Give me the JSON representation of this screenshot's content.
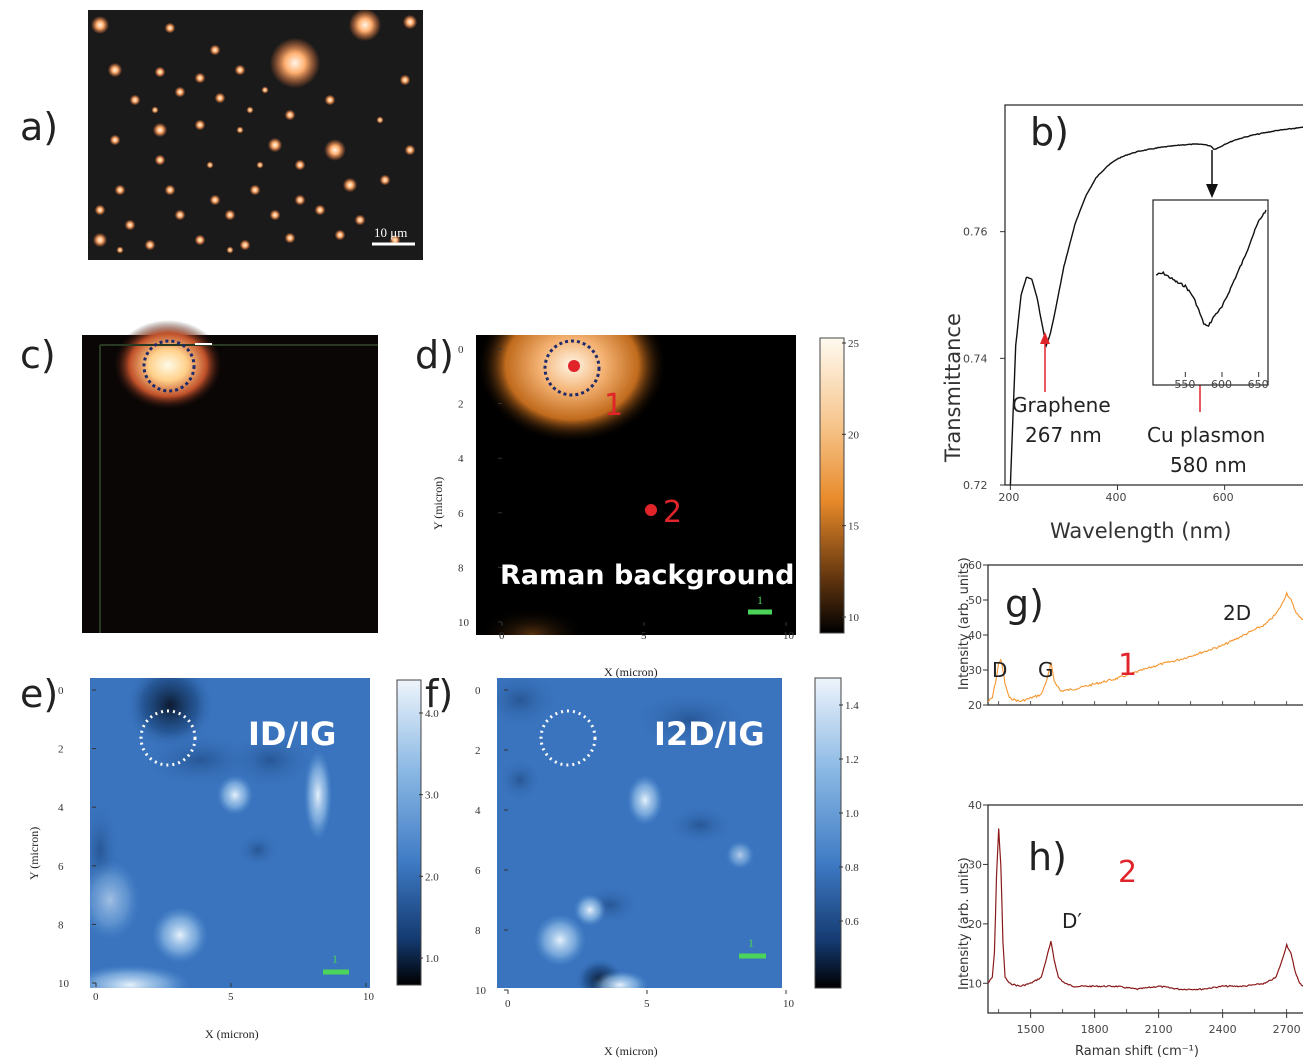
{
  "panels": {
    "a": {
      "label": "a)",
      "scale_bar": "10 μm"
    },
    "b": {
      "label": "b)"
    },
    "c": {
      "label": "c)"
    },
    "d": {
      "label": "d)",
      "annotation": "Raman background",
      "point1": "1",
      "point2": "2",
      "scale": "1",
      "xlabel": "X (micron)",
      "ylabel": "Y (micron)",
      "xticks": [
        "0",
        "5",
        "10"
      ],
      "yticks": [
        "0",
        "2",
        "4",
        "6",
        "8",
        "10"
      ],
      "colorbar_ticks": [
        "25",
        "20",
        "15",
        "10"
      ]
    },
    "e": {
      "label": "e)",
      "annotation": "ID/IG",
      "scale": "1",
      "xlabel": "X (micron)",
      "ylabel": "Y (micron)",
      "xticks": [
        "0",
        "5",
        "10"
      ],
      "yticks": [
        "0",
        "2",
        "4",
        "6",
        "8",
        "10"
      ],
      "colorbar_ticks": [
        "4.0",
        "3.0",
        "2.0",
        "1.0"
      ]
    },
    "f": {
      "label": "f)",
      "annotation": "I2D/IG",
      "scale": "1",
      "xlabel": "X (micron)",
      "xticks": [
        "0",
        "5",
        "10"
      ],
      "yticks": [
        "0",
        "2",
        "4",
        "6",
        "8",
        "10"
      ],
      "colorbar_ticks": [
        "1.4",
        "1.2",
        "1.0",
        "0.8",
        "0.6"
      ]
    },
    "g": {
      "label": "g)",
      "peak_D": "D",
      "peak_G": "G",
      "peak_2D": "2D",
      "point": "1"
    },
    "h": {
      "label": "h)",
      "peak_Dp": "D′",
      "point": "2"
    }
  },
  "chart_data": [
    {
      "panel": "b",
      "type": "line",
      "xlabel": "Wavelength (nm)",
      "ylabel": "Transmittance",
      "xlim": [
        190,
        750
      ],
      "ylim": [
        0.72,
        0.78
      ],
      "xticks": [
        "200",
        "400",
        "600"
      ],
      "yticks": [
        "0.72",
        "0.74",
        "0.76"
      ],
      "x": [
        200,
        210,
        220,
        230,
        240,
        250,
        260,
        267,
        275,
        285,
        300,
        320,
        340,
        360,
        380,
        400,
        420,
        440,
        460,
        480,
        500,
        520,
        540,
        560,
        575,
        580,
        590,
        600,
        620,
        650,
        680,
        700,
        720,
        740,
        750
      ],
      "y": [
        0.72,
        0.742,
        0.75,
        0.7528,
        0.7525,
        0.7495,
        0.745,
        0.742,
        0.744,
        0.748,
        0.7545,
        0.761,
        0.7655,
        0.7685,
        0.7703,
        0.7715,
        0.7722,
        0.7727,
        0.773,
        0.7733,
        0.7735,
        0.7737,
        0.7738,
        0.7738,
        0.7735,
        0.773,
        0.7733,
        0.7738,
        0.7745,
        0.7752,
        0.7757,
        0.776,
        0.7762,
        0.7764,
        0.7765
      ],
      "annotations": [
        {
          "text_line1": "Graphene",
          "text_line2": "267 nm",
          "x": 267
        },
        {
          "text_line1": "Cu plasmon",
          "text_line2": "580 nm",
          "x": 580
        }
      ],
      "inset": {
        "xticks": [
          "550",
          "600",
          "650"
        ],
        "xlim": [
          510,
          660
        ],
        "x": [
          510,
          520,
          530,
          540,
          550,
          555,
          560,
          565,
          570,
          575,
          580,
          585,
          590,
          600,
          610,
          620,
          630,
          640,
          650,
          660
        ],
        "y": [
          0.6,
          0.61,
          0.58,
          0.55,
          0.53,
          0.5,
          0.47,
          0.42,
          0.36,
          0.3,
          0.28,
          0.31,
          0.35,
          0.4,
          0.5,
          0.6,
          0.7,
          0.82,
          0.93,
          1.0
        ]
      }
    },
    {
      "panel": "g",
      "type": "line",
      "ylabel": "Intensity (arb. units)",
      "xlim": [
        1300,
        2800
      ],
      "ylim": [
        20,
        60
      ],
      "yticks": [
        "20",
        "30",
        "40",
        "50",
        "60"
      ],
      "x": [
        1300,
        1320,
        1340,
        1350,
        1360,
        1370,
        1380,
        1400,
        1450,
        1500,
        1550,
        1580,
        1595,
        1610,
        1640,
        1700,
        1800,
        1900,
        2000,
        2100,
        2200,
        2300,
        2400,
        2500,
        2550,
        2600,
        2650,
        2680,
        2700,
        2720,
        2740,
        2760,
        2800
      ],
      "y": [
        21,
        22,
        28,
        32,
        33,
        30,
        26,
        22,
        21,
        22,
        23,
        28,
        32,
        27,
        24,
        24.5,
        26,
        27.5,
        29.5,
        31.5,
        33,
        35,
        37,
        40,
        41.5,
        43,
        46,
        49,
        52,
        50,
        47,
        45,
        44
      ],
      "color": "#f5962e"
    },
    {
      "panel": "h",
      "type": "line",
      "xlabel": "Raman shift (cm⁻¹)",
      "ylabel": "Intensity (arb. units)",
      "xlim": [
        1300,
        2800
      ],
      "ylim": [
        5,
        40
      ],
      "xticks": [
        "1500",
        "1800",
        "2100",
        "2400",
        "2700"
      ],
      "yticks": [
        "10",
        "20",
        "30",
        "40"
      ],
      "x": [
        1300,
        1320,
        1330,
        1340,
        1350,
        1360,
        1370,
        1380,
        1400,
        1450,
        1500,
        1550,
        1580,
        1595,
        1610,
        1630,
        1660,
        1700,
        1800,
        1900,
        2000,
        2100,
        2200,
        2300,
        2400,
        2500,
        2600,
        2650,
        2680,
        2700,
        2720,
        2740,
        2760,
        2780,
        2800
      ],
      "y": [
        10,
        11,
        15,
        28,
        36,
        30,
        17,
        11,
        10,
        9.5,
        10,
        11,
        15,
        17,
        14,
        11,
        10,
        9.5,
        9.5,
        9.5,
        9,
        9.5,
        9,
        9,
        9.5,
        9.5,
        10,
        11,
        14,
        16.5,
        15,
        12,
        10,
        9.5,
        9.5
      ],
      "color": "#8a1a1a"
    }
  ]
}
